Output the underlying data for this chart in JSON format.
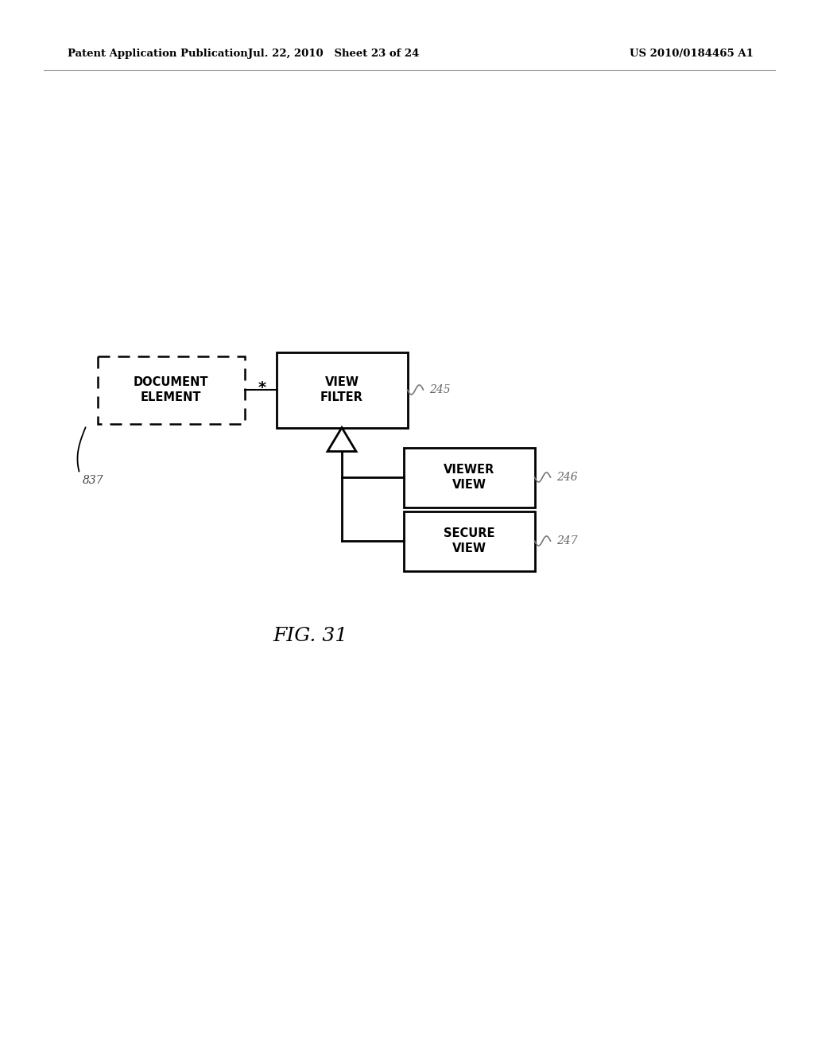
{
  "header_left": "Patent Application Publication",
  "header_mid": "Jul. 22, 2010   Sheet 23 of 24",
  "header_right": "US 2010/0184465 A1",
  "fig_caption": "FIG. 31",
  "doc_element_label": "DOCUMENT\nELEMENT",
  "doc_element_ref": "837",
  "view_filter_label": "VIEW\nFILTER",
  "view_filter_ref": "245",
  "viewer_view_label": "VIEWER\nVIEW",
  "viewer_view_ref": "246",
  "secure_view_label": "SECURE\nVIEW",
  "secure_view_ref": "247",
  "multiplicity": "*",
  "bg_color": "#ffffff",
  "box_color": "#000000",
  "text_color": "#000000",
  "ref_color": "#666666"
}
